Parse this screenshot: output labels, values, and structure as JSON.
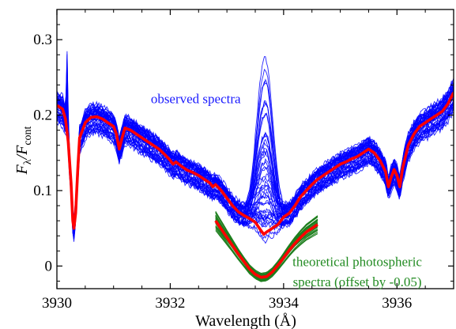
{
  "chart_data": {
    "type": "line",
    "xlabel": "Wavelength (Å)",
    "ylabel": {
      "main": "F",
      "main_sub": "λ",
      "sep": "/F",
      "sep_sub": "cont"
    },
    "xlim": [
      3930,
      3937
    ],
    "ylim": [
      -0.03,
      0.34
    ],
    "xticks": [
      3930,
      3932,
      3934,
      3936
    ],
    "xtick_labels": [
      "3930",
      "3932",
      "3934",
      "3936"
    ],
    "yticks": [
      0,
      0.1,
      0.2,
      0.3
    ],
    "ytick_labels": [
      "0",
      "0.1",
      "0.2",
      "0.3"
    ],
    "grid": false,
    "annotations": [
      {
        "text": "observed spectra",
        "color": "#1a1aff",
        "x": 3932.45,
        "y": 0.216,
        "anchor": "middle"
      },
      {
        "text": "theoretical photospheric",
        "color": "#228b22",
        "x": 3935.3,
        "y": 0.0,
        "anchor": "middle"
      },
      {
        "text": "spectra (offset by -0.05)",
        "color": "#228b22",
        "x": 3935.3,
        "y": -0.027,
        "anchor": "middle"
      }
    ],
    "series": [
      {
        "role": "observed-mean",
        "color": "#ff0000",
        "x": [
          3930.0,
          3930.1,
          3930.15,
          3930.2,
          3930.25,
          3930.28,
          3930.3,
          3930.33,
          3930.37,
          3930.4,
          3930.5,
          3930.6,
          3930.7,
          3930.8,
          3930.9,
          3931.0,
          3931.05,
          3931.1,
          3931.15,
          3931.2,
          3931.3,
          3931.4,
          3931.5,
          3931.6,
          3931.7,
          3931.8,
          3931.9,
          3932.0,
          3932.05,
          3932.1,
          3932.2,
          3932.3,
          3932.4,
          3932.5,
          3932.6,
          3932.7,
          3932.75,
          3932.8,
          3932.9,
          3933.0,
          3933.1,
          3933.2,
          3933.3,
          3933.4,
          3933.5,
          3933.6,
          3933.65,
          3933.7,
          3933.8,
          3933.9,
          3934.0,
          3934.1,
          3934.2,
          3934.3,
          3934.4,
          3934.5,
          3934.6,
          3934.7,
          3934.8,
          3934.9,
          3935.0,
          3935.1,
          3935.2,
          3935.3,
          3935.4,
          3935.5,
          3935.6,
          3935.7,
          3935.8,
          3935.85,
          3935.9,
          3935.95,
          3936.0,
          3936.05,
          3936.1,
          3936.2,
          3936.3,
          3936.4,
          3936.5,
          3936.6,
          3936.7,
          3936.8,
          3936.9,
          3937.0
        ],
        "y": [
          0.213,
          0.208,
          0.195,
          0.165,
          0.11,
          0.06,
          0.05,
          0.07,
          0.13,
          0.17,
          0.19,
          0.197,
          0.198,
          0.195,
          0.19,
          0.185,
          0.175,
          0.155,
          0.17,
          0.183,
          0.18,
          0.175,
          0.17,
          0.165,
          0.16,
          0.155,
          0.148,
          0.14,
          0.135,
          0.138,
          0.132,
          0.127,
          0.124,
          0.12,
          0.115,
          0.11,
          0.105,
          0.108,
          0.1,
          0.09,
          0.08,
          0.072,
          0.067,
          0.063,
          0.058,
          0.047,
          0.042,
          0.045,
          0.05,
          0.055,
          0.065,
          0.07,
          0.08,
          0.092,
          0.1,
          0.108,
          0.115,
          0.12,
          0.125,
          0.13,
          0.135,
          0.138,
          0.142,
          0.145,
          0.15,
          0.155,
          0.15,
          0.14,
          0.125,
          0.105,
          0.118,
          0.128,
          0.12,
          0.105,
          0.13,
          0.16,
          0.175,
          0.185,
          0.19,
          0.195,
          0.2,
          0.205,
          0.215,
          0.23
        ]
      },
      {
        "role": "photospheric-mean",
        "color": "#ff0000",
        "x": [
          3932.8,
          3932.9,
          3933.0,
          3933.1,
          3933.2,
          3933.3,
          3933.4,
          3933.5,
          3933.6,
          3933.7,
          3933.8,
          3933.9,
          3934.0,
          3934.1,
          3934.2,
          3934.3,
          3934.4,
          3934.5,
          3934.6
        ],
        "y": [
          0.06,
          0.049,
          0.038,
          0.027,
          0.016,
          0.006,
          -0.004,
          -0.011,
          -0.015,
          -0.014,
          -0.008,
          0.001,
          0.011,
          0.021,
          0.03,
          0.038,
          0.045,
          0.05,
          0.055
        ]
      }
    ]
  }
}
